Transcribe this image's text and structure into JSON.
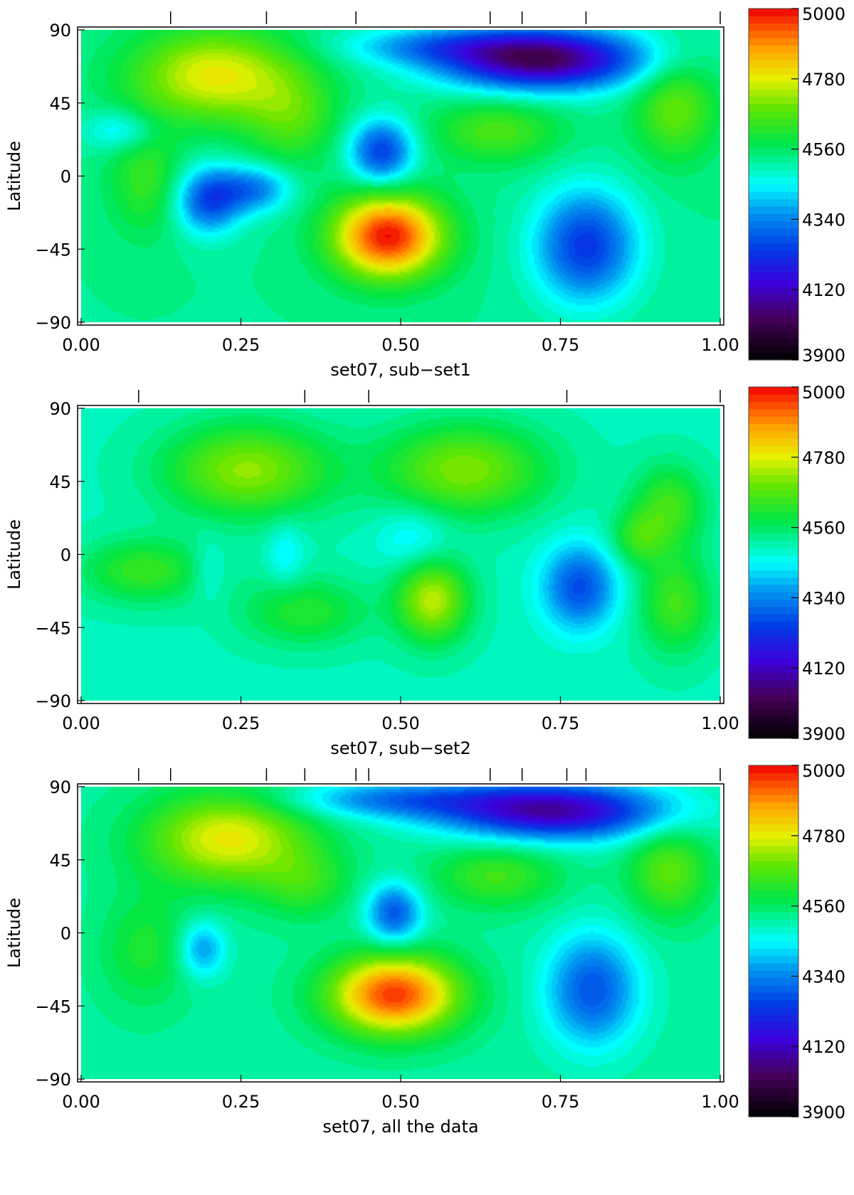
{
  "chart_data": [
    {
      "type": "heatmap",
      "xlabel": "set07, sub−set1",
      "ylabel": "Latitude",
      "xlim": [
        0,
        1
      ],
      "ylim": [
        -90,
        90
      ],
      "x_ticks": [
        "0.00",
        "0.25",
        "0.50",
        "0.75",
        "1.00"
      ],
      "y_ticks": [
        "90",
        "45",
        "0",
        "−45",
        "−90"
      ],
      "top_markers": [
        0.14,
        0.29,
        0.43,
        0.64,
        0.69,
        0.79,
        1.0
      ],
      "colorbar": {
        "range": [
          3900,
          5000
        ],
        "labels": [
          "5000",
          "4780",
          "4560",
          "4340",
          "4120",
          "3900"
        ]
      },
      "background_value": 4530,
      "features": [
        {
          "x": 0.72,
          "y": 72,
          "value": 4030,
          "sx": 0.11,
          "sy": 13
        },
        {
          "x": 0.55,
          "y": 80,
          "value": 4380,
          "sx": 0.1,
          "sy": 8
        },
        {
          "x": 0.47,
          "y": 15,
          "value": 4250,
          "sx": 0.035,
          "sy": 14
        },
        {
          "x": 0.2,
          "y": -15,
          "value": 4270,
          "sx": 0.035,
          "sy": 14
        },
        {
          "x": 0.27,
          "y": -8,
          "value": 4330,
          "sx": 0.04,
          "sy": 10
        },
        {
          "x": 0.79,
          "y": -43,
          "value": 4240,
          "sx": 0.055,
          "sy": 24
        },
        {
          "x": 0.065,
          "y": 28,
          "value": 4410,
          "sx": 0.04,
          "sy": 9
        },
        {
          "x": 0.48,
          "y": -37,
          "value": 4990,
          "sx": 0.06,
          "sy": 18
        },
        {
          "x": 0.21,
          "y": 62,
          "value": 4790,
          "sx": 0.09,
          "sy": 20
        },
        {
          "x": 0.93,
          "y": 42,
          "value": 4690,
          "sx": 0.045,
          "sy": 22
        },
        {
          "x": 0.65,
          "y": 28,
          "value": 4660,
          "sx": 0.07,
          "sy": 14
        },
        {
          "x": 0.1,
          "y": 0,
          "value": 4640,
          "sx": 0.04,
          "sy": 25
        },
        {
          "x": 0.33,
          "y": 35,
          "value": 4650,
          "sx": 0.05,
          "sy": 20
        }
      ]
    },
    {
      "type": "heatmap",
      "xlabel": "set07, sub−set2",
      "ylabel": "Latitude",
      "xlim": [
        0,
        1
      ],
      "ylim": [
        -90,
        90
      ],
      "x_ticks": [
        "0.00",
        "0.25",
        "0.50",
        "0.75",
        "1.00"
      ],
      "y_ticks": [
        "90",
        "45",
        "0",
        "−45",
        "−90"
      ],
      "top_markers": [
        0.09,
        0.35,
        0.45,
        0.76,
        1.0
      ],
      "colorbar": {
        "range": [
          3900,
          5000
        ],
        "labels": [
          "5000",
          "4780",
          "4560",
          "4340",
          "4120",
          "3900"
        ]
      },
      "background_value": 4500,
      "features": [
        {
          "x": 0.78,
          "y": -20,
          "value": 4270,
          "sx": 0.04,
          "sy": 18
        },
        {
          "x": 0.26,
          "y": 52,
          "value": 4720,
          "sx": 0.09,
          "sy": 20
        },
        {
          "x": 0.6,
          "y": 52,
          "value": 4710,
          "sx": 0.09,
          "sy": 20
        },
        {
          "x": 0.55,
          "y": -28,
          "value": 4750,
          "sx": 0.04,
          "sy": 18
        },
        {
          "x": 0.93,
          "y": -30,
          "value": 4650,
          "sx": 0.04,
          "sy": 22
        },
        {
          "x": 0.92,
          "y": 30,
          "value": 4650,
          "sx": 0.04,
          "sy": 18
        },
        {
          "x": 0.1,
          "y": -10,
          "value": 4640,
          "sx": 0.07,
          "sy": 14
        },
        {
          "x": 0.35,
          "y": -35,
          "value": 4620,
          "sx": 0.07,
          "sy": 15
        },
        {
          "x": 0.52,
          "y": 10,
          "value": 4420,
          "sx": 0.04,
          "sy": 14
        },
        {
          "x": 0.32,
          "y": 0,
          "value": 4430,
          "sx": 0.02,
          "sy": 14
        },
        {
          "x": 0.2,
          "y": -10,
          "value": 4440,
          "sx": 0.02,
          "sy": 14
        },
        {
          "x": 0.87,
          "y": 10,
          "value": 4620,
          "sx": 0.03,
          "sy": 12
        }
      ]
    },
    {
      "type": "heatmap",
      "xlabel": "set07, all the data",
      "ylabel": "Latitude",
      "xlim": [
        0,
        1
      ],
      "ylim": [
        -90,
        90
      ],
      "x_ticks": [
        "0.00",
        "0.25",
        "0.50",
        "0.75",
        "1.00"
      ],
      "y_ticks": [
        "90",
        "45",
        "0",
        "−45",
        "−90"
      ],
      "top_markers": [
        0.09,
        0.14,
        0.29,
        0.35,
        0.43,
        0.45,
        0.64,
        0.69,
        0.76,
        0.79,
        1.0
      ],
      "colorbar": {
        "range": [
          3900,
          5000
        ],
        "labels": [
          "5000",
          "4780",
          "4560",
          "4340",
          "4120",
          "3900"
        ]
      },
      "background_value": 4520,
      "features": [
        {
          "x": 0.74,
          "y": 75,
          "value": 4100,
          "sx": 0.12,
          "sy": 12
        },
        {
          "x": 0.5,
          "y": 82,
          "value": 4330,
          "sx": 0.12,
          "sy": 8
        },
        {
          "x": 0.49,
          "y": 12,
          "value": 4280,
          "sx": 0.03,
          "sy": 13
        },
        {
          "x": 0.19,
          "y": -10,
          "value": 4360,
          "sx": 0.025,
          "sy": 12
        },
        {
          "x": 0.8,
          "y": -35,
          "value": 4280,
          "sx": 0.05,
          "sy": 24
        },
        {
          "x": 0.49,
          "y": -38,
          "value": 4960,
          "sx": 0.07,
          "sy": 17
        },
        {
          "x": 0.23,
          "y": 58,
          "value": 4790,
          "sx": 0.09,
          "sy": 20
        },
        {
          "x": 0.92,
          "y": 38,
          "value": 4680,
          "sx": 0.045,
          "sy": 20
        },
        {
          "x": 0.65,
          "y": 35,
          "value": 4650,
          "sx": 0.07,
          "sy": 14
        },
        {
          "x": 0.1,
          "y": -10,
          "value": 4610,
          "sx": 0.05,
          "sy": 25
        },
        {
          "x": 0.35,
          "y": 30,
          "value": 4620,
          "sx": 0.05,
          "sy": 15
        }
      ]
    }
  ]
}
